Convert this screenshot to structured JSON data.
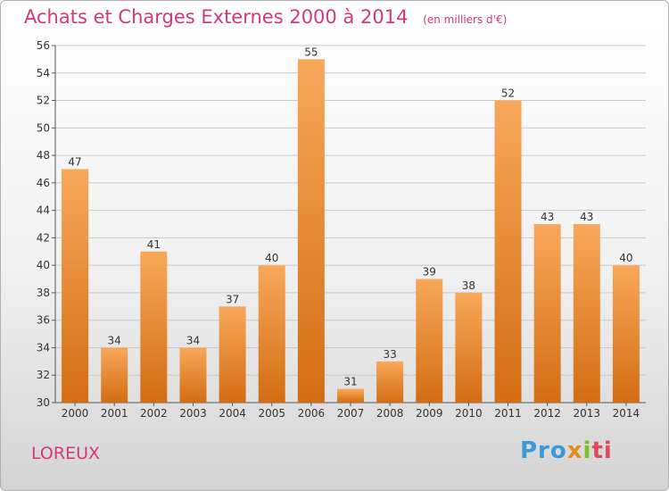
{
  "header": {
    "title": "Achats et Charges Externes 2000 à 2014",
    "unit": "(en milliers d'€)"
  },
  "footer": {
    "commune": "LOREUX",
    "logo_parts": [
      "Pro",
      "x",
      "i",
      "ti"
    ]
  },
  "colors": {
    "title": "#d4387a",
    "bar_top": "#f8a85a",
    "bar_bottom": "#d36d13",
    "grid": "#c8c8c8"
  },
  "chart_data": {
    "type": "bar",
    "title": "Achats et Charges Externes 2000 à 2014",
    "subtitle": "(en milliers d'€)",
    "categories": [
      "2000",
      "2001",
      "2002",
      "2003",
      "2004",
      "2005",
      "2006",
      "2007",
      "2008",
      "2009",
      "2010",
      "2011",
      "2012",
      "2013",
      "2014"
    ],
    "values": [
      47,
      34,
      41,
      34,
      37,
      40,
      55,
      31,
      33,
      39,
      38,
      52,
      43,
      43,
      40
    ],
    "ylim": [
      30,
      56
    ],
    "yticks": [
      30,
      32,
      34,
      36,
      38,
      40,
      42,
      44,
      46,
      48,
      50,
      52,
      54,
      56
    ],
    "grid": true,
    "data_labels": true,
    "legend": "none"
  }
}
